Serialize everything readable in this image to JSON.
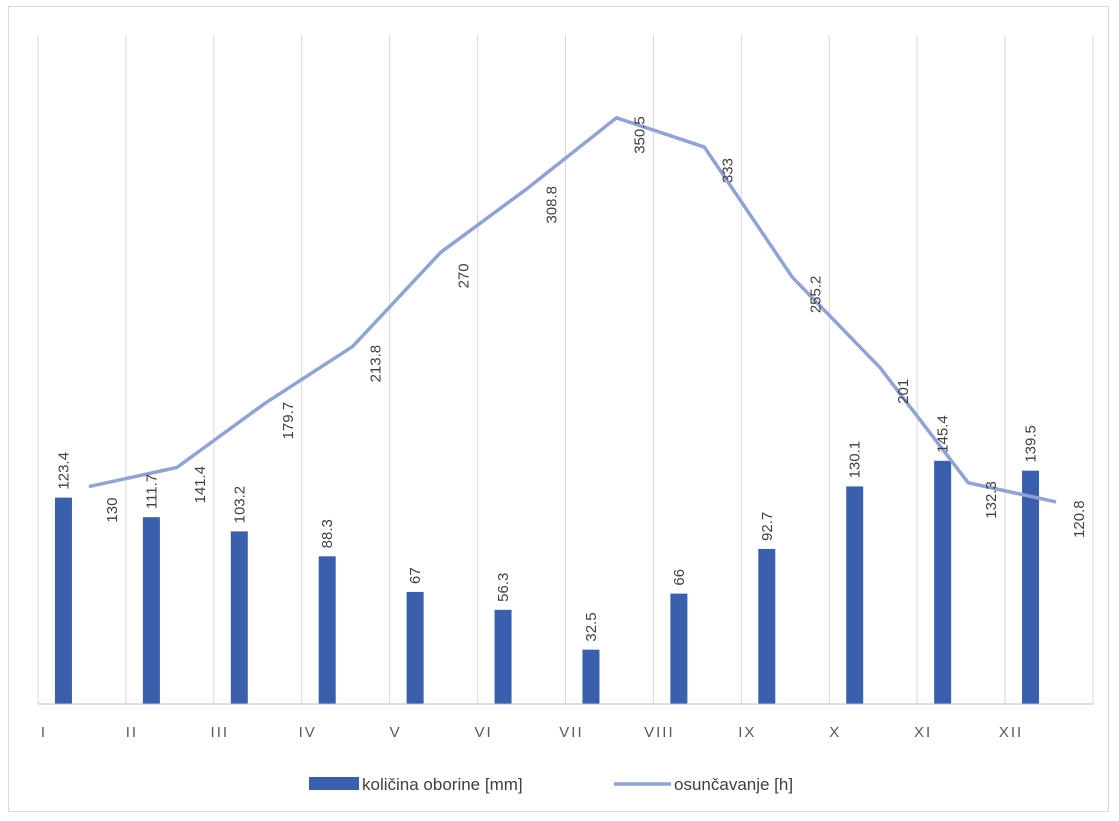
{
  "colors": {
    "bar": "#3a5fad",
    "line": "#8fa3d6",
    "grid": "#d9d9d9",
    "axis": "#bfbfbf"
  },
  "chart_data": {
    "type": "bar",
    "categories": [
      "I",
      "II",
      "III",
      "IV",
      "V",
      "VI",
      "VII",
      "VIII",
      "IX",
      "X",
      "XI",
      "XII"
    ],
    "ylim": [
      0,
      400
    ],
    "grid": "vertical",
    "legend_position": "bottom",
    "series": [
      {
        "name": "količina oborine [mm]",
        "type": "bar",
        "values": [
          123.4,
          111.7,
          103.2,
          88.3,
          67,
          56.3,
          32.5,
          66,
          92.7,
          130.1,
          145.4,
          139.5
        ]
      },
      {
        "name": "osunčavanje [h]",
        "type": "line",
        "values": [
          130,
          141.4,
          179.7,
          213.8,
          270,
          308.8,
          350.5,
          333,
          255.2,
          201,
          132.3,
          120.8
        ]
      }
    ]
  }
}
